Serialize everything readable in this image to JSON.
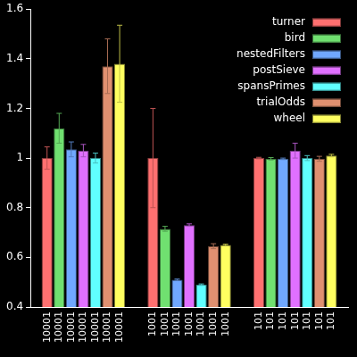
{
  "chart_data": {
    "type": "bar",
    "categories": [
      "10001",
      "1001",
      "101"
    ],
    "series": [
      {
        "name": "turner",
        "color": "#ff7070",
        "values": [
          1.0,
          1.0,
          1.0
        ],
        "errors": [
          0.045,
          0.2,
          0.003
        ]
      },
      {
        "name": "bird",
        "color": "#70e070",
        "values": [
          1.12,
          0.715,
          0.997
        ],
        "errors": [
          0.06,
          0.01,
          0.005
        ]
      },
      {
        "name": "nestedFilters",
        "color": "#70a8ff",
        "values": [
          1.035,
          0.51,
          0.997
        ],
        "errors": [
          0.03,
          0.003,
          0.003
        ]
      },
      {
        "name": "postSieve",
        "color": "#e070ff",
        "values": [
          1.03,
          0.73,
          1.03
        ],
        "errors": [
          0.025,
          0.005,
          0.03
        ]
      },
      {
        "name": "spansPrimes",
        "color": "#60ffff",
        "values": [
          1.0,
          0.49,
          1.0
        ],
        "errors": [
          0.02,
          0.003,
          0.01
        ]
      },
      {
        "name": "trialOdds",
        "color": "#e09070",
        "values": [
          1.37,
          0.645,
          0.997
        ],
        "errors": [
          0.11,
          0.01,
          0.01
        ]
      },
      {
        "name": "wheel",
        "color": "#ffff60",
        "values": [
          1.38,
          0.65,
          1.01
        ],
        "errors": [
          0.155,
          0.003,
          0.005
        ]
      }
    ],
    "ylim": [
      0.4,
      1.6
    ],
    "yticks": [
      0.4,
      0.6,
      0.8,
      1,
      1.2,
      1.4,
      1.6
    ],
    "grid": false,
    "legend": "top-right"
  }
}
